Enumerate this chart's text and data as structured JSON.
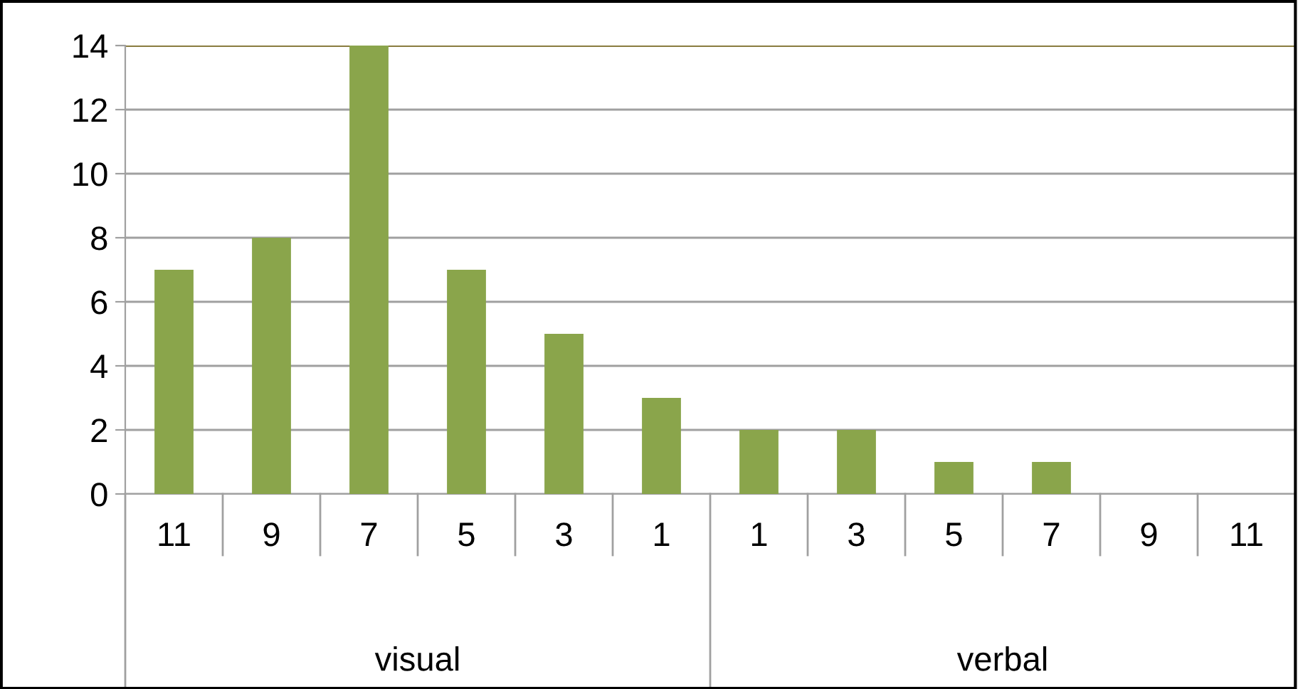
{
  "chart_data": {
    "type": "bar",
    "categories": [
      "11",
      "9",
      "7",
      "5",
      "3",
      "1",
      "1",
      "3",
      "5",
      "7",
      "9",
      "11"
    ],
    "values": [
      7,
      8,
      14,
      7,
      5,
      3,
      2,
      2,
      1,
      1,
      0,
      0
    ],
    "color": "#8aa54b",
    "ylim": [
      0,
      14
    ],
    "yticks": [
      0,
      2,
      4,
      6,
      8,
      10,
      12,
      14
    ],
    "grid": "y",
    "annotations": [
      "visual",
      "verbal"
    ]
  }
}
